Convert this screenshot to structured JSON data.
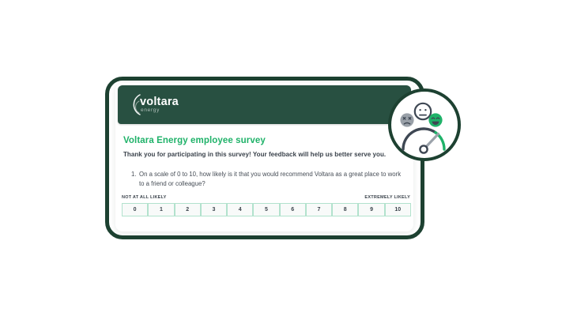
{
  "logo": {
    "brand": "voltara",
    "sub": "energy"
  },
  "survey": {
    "title": "Voltara Energy employee survey",
    "intro": "Thank you for participating in this survey! Your feedback will help us better serve you.",
    "question": {
      "number": "1.",
      "text": "On a scale of 0 to 10, how likely is it that you would recommend Voltara as a great place to work to a friend or colleague?",
      "left_label": "NOT AT ALL LIKELY",
      "right_label": "EXTREMELY LIKELY",
      "options": [
        "0",
        "1",
        "2",
        "3",
        "4",
        "5",
        "6",
        "7",
        "8",
        "9",
        "10"
      ]
    }
  },
  "badge": {
    "icons": [
      "angry-face-icon",
      "neutral-face-icon",
      "happy-face-icon",
      "gauge-icon"
    ]
  },
  "colors": {
    "frame_green": "#1D4131",
    "header_green": "#285041",
    "accent_green": "#1FB269",
    "slate": "#3E4753",
    "gray_face": "#99A0A8",
    "needle_gray": "#9CA3AB",
    "mint_border": "#B2E2CD",
    "cell_bg": "#F8FAF9",
    "text_dark": "#3A424B",
    "text_body": "#464D56"
  }
}
